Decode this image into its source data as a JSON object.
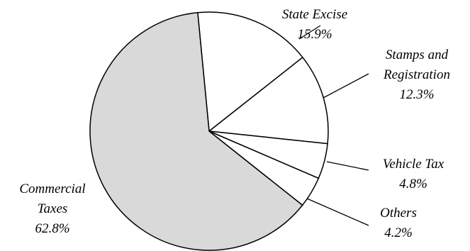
{
  "chart_data": {
    "type": "pie",
    "slices": [
      {
        "name": "State Excise",
        "value": 15.9,
        "label": "15.9%",
        "color": "#ffffff"
      },
      {
        "name": "Stamps and Registration",
        "name_lines": [
          "Stamps and",
          "Registration"
        ],
        "value": 12.3,
        "label": "12.3%",
        "color": "#ffffff"
      },
      {
        "name": "Vehicle Tax",
        "value": 4.8,
        "label": "4.8%",
        "color": "#ffffff"
      },
      {
        "name": "Others",
        "value": 4.2,
        "label": "4.2%",
        "color": "#ffffff"
      },
      {
        "name": "Commercial Taxes",
        "name_lines": [
          "Commercial",
          "Taxes"
        ],
        "value": 62.8,
        "label": "62.8%",
        "color": "#d9d9d9"
      }
    ],
    "start_angle_deg": -5.5,
    "direction": "clockwise",
    "legend": "none",
    "labels": "outside-with-leader-lines"
  }
}
